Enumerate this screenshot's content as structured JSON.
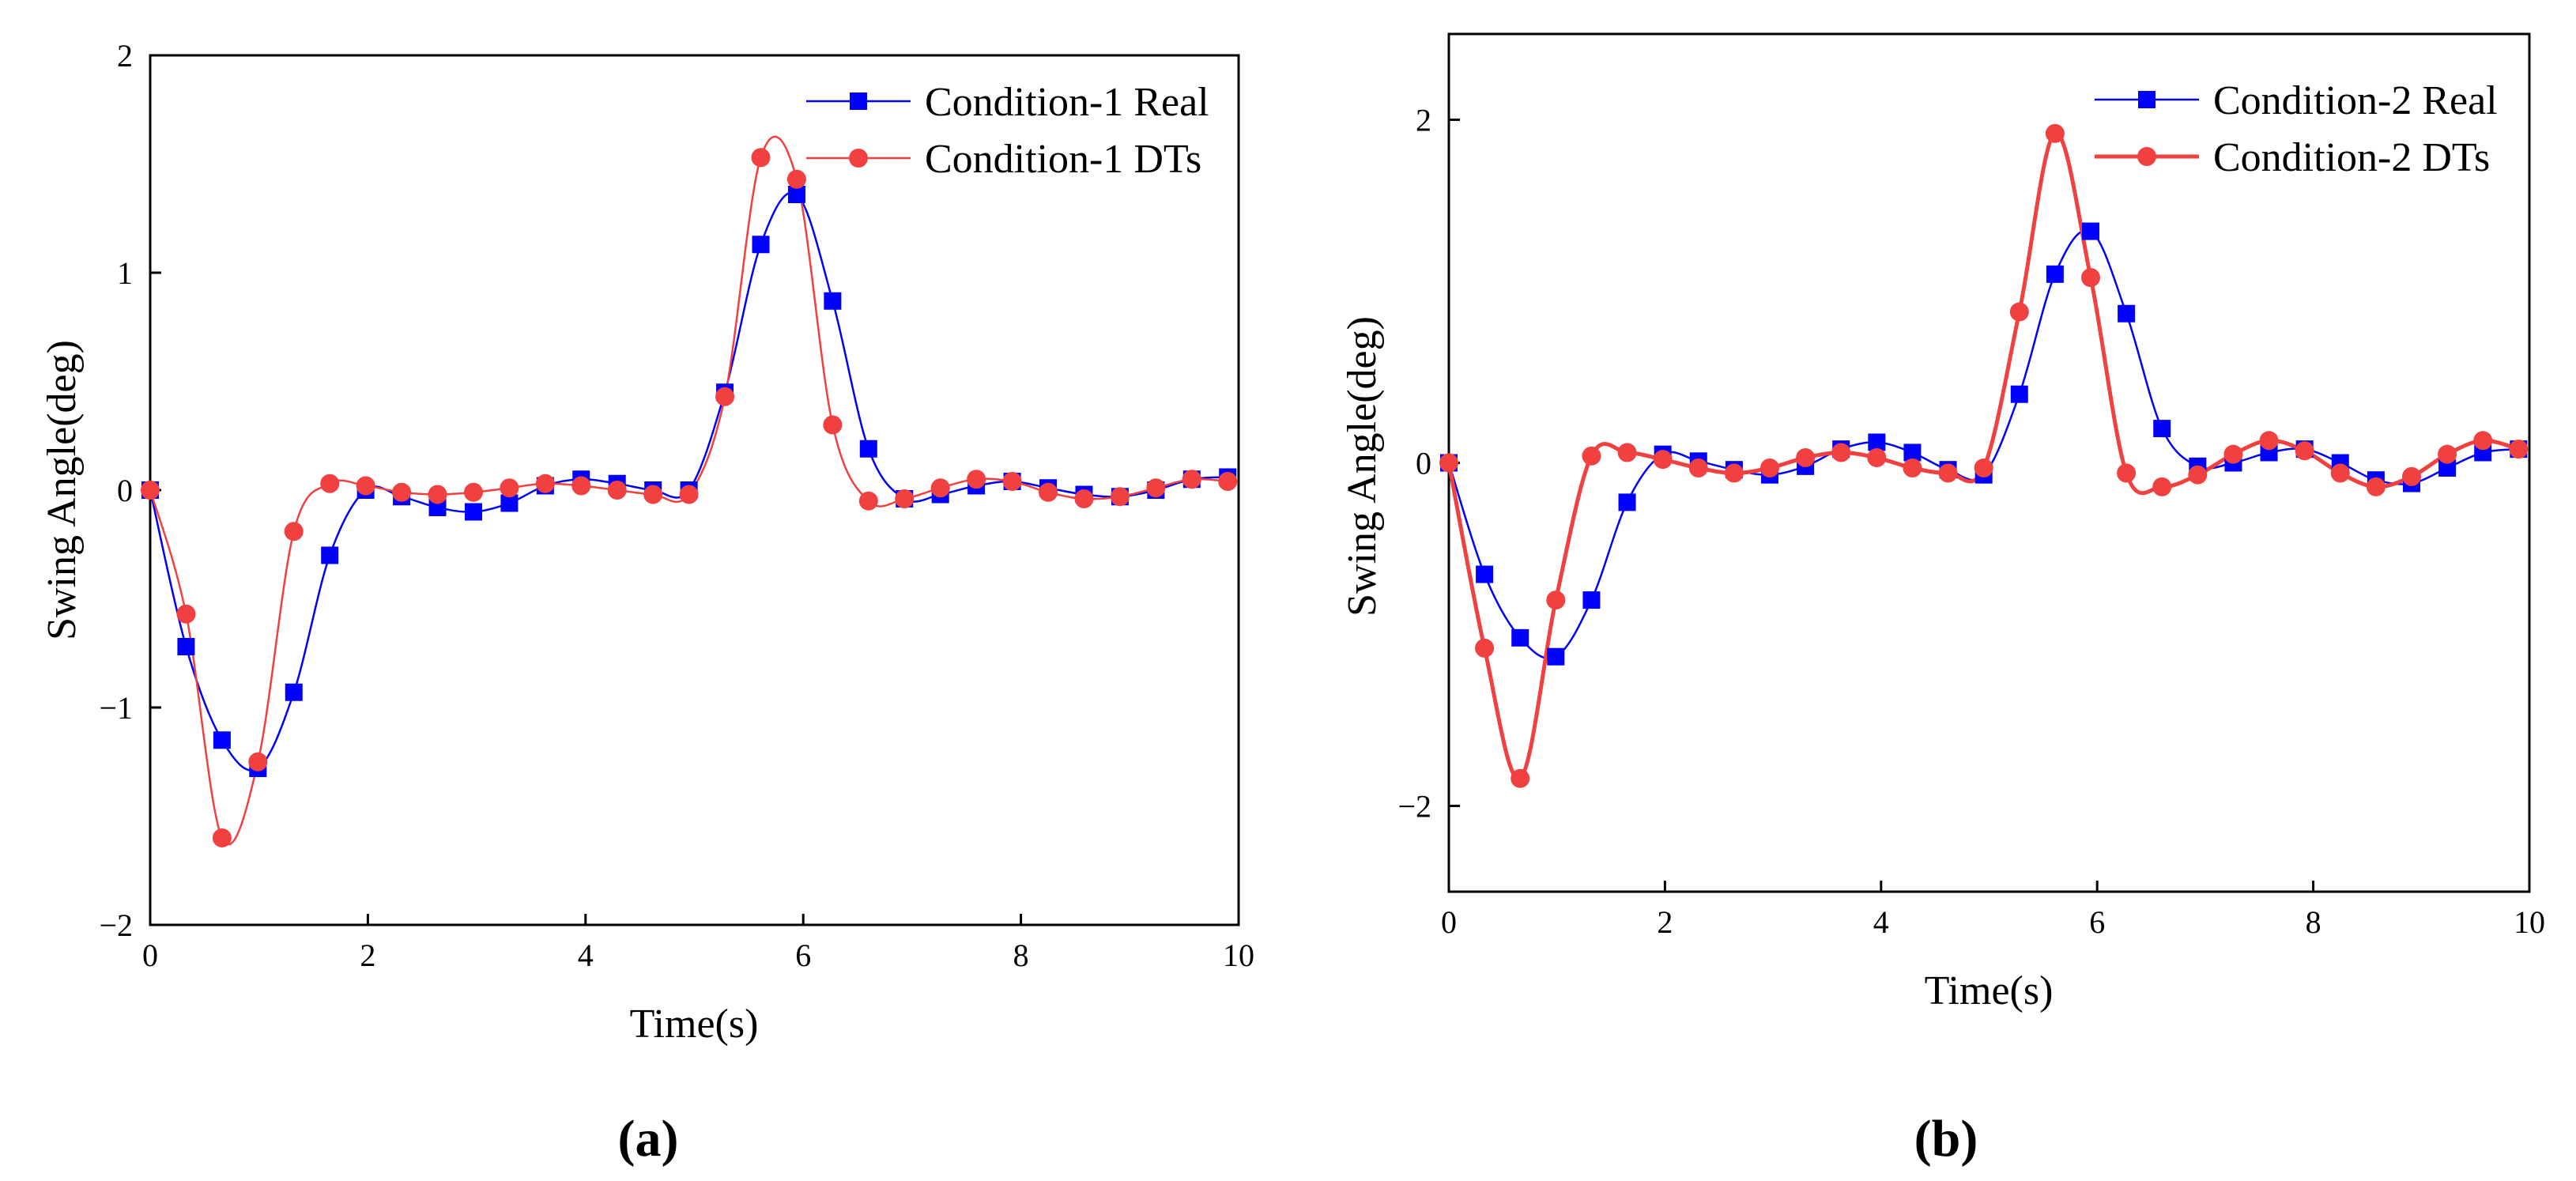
{
  "chart_data": [
    {
      "type": "line",
      "panel_label": "(a)",
      "panel_letter": "a",
      "xlabel": "Time(s)",
      "ylabel": "Swing Angle(deg)",
      "xlim": [
        0,
        10
      ],
      "ylim": [
        -2,
        2
      ],
      "xticks": [
        0,
        2,
        4,
        6,
        8,
        10
      ],
      "yticks": [
        -2,
        -1,
        0,
        1,
        2
      ],
      "xtick_labels": [
        "0",
        "2",
        "4",
        "6",
        "8",
        "10"
      ],
      "ytick_labels": [
        "−2",
        "−1",
        "0",
        "1",
        "2"
      ],
      "legend_position": "top-right",
      "series": [
        {
          "name": "Condition-1 Real",
          "color": "#0000ff",
          "marker": "square",
          "x": [
            0,
            0.33,
            0.66,
            0.99,
            1.32,
            1.65,
            1.98,
            2.31,
            2.64,
            2.97,
            3.3,
            3.63,
            3.96,
            4.29,
            4.62,
            4.95,
            5.28,
            5.61,
            5.94,
            6.27,
            6.6,
            6.93,
            7.26,
            7.59,
            7.92,
            8.25,
            8.58,
            8.91,
            9.24,
            9.57,
            9.9
          ],
          "y": [
            0,
            -0.72,
            -1.15,
            -1.28,
            -0.93,
            -0.3,
            0.0,
            -0.03,
            -0.08,
            -0.1,
            -0.06,
            0.02,
            0.05,
            0.03,
            0.0,
            0.0,
            0.45,
            1.13,
            1.36,
            0.87,
            0.19,
            -0.04,
            -0.02,
            0.02,
            0.04,
            0.01,
            -0.02,
            -0.03,
            0.0,
            0.05,
            0.06
          ]
        },
        {
          "name": "Condition-1 DTs",
          "color": "#f04040",
          "marker": "circle",
          "x": [
            0,
            0.33,
            0.66,
            0.99,
            1.32,
            1.65,
            1.98,
            2.31,
            2.64,
            2.97,
            3.3,
            3.63,
            3.96,
            4.29,
            4.62,
            4.95,
            5.28,
            5.61,
            5.94,
            6.27,
            6.6,
            6.93,
            7.26,
            7.59,
            7.92,
            8.25,
            8.58,
            8.91,
            9.24,
            9.57,
            9.9
          ],
          "y": [
            0,
            -0.57,
            -1.6,
            -1.25,
            -0.19,
            0.03,
            0.02,
            -0.01,
            -0.02,
            -0.01,
            0.01,
            0.03,
            0.02,
            0.0,
            -0.02,
            -0.02,
            0.43,
            1.53,
            1.43,
            0.3,
            -0.05,
            -0.04,
            0.01,
            0.05,
            0.04,
            -0.01,
            -0.04,
            -0.03,
            0.01,
            0.05,
            0.04
          ]
        }
      ]
    },
    {
      "type": "line",
      "panel_label": "(b)",
      "panel_letter": "b",
      "xlabel": "Time(s)",
      "ylabel": "Swing Angle(deg)",
      "xlim": [
        0,
        10
      ],
      "ylim": [
        -2.5,
        2.5
      ],
      "xticks": [
        0,
        2,
        4,
        6,
        8,
        10
      ],
      "yticks": [
        -2,
        0,
        2
      ],
      "xtick_labels": [
        "0",
        "2",
        "4",
        "6",
        "8",
        "10"
      ],
      "ytick_labels": [
        "−2",
        "0",
        "2"
      ],
      "legend_position": "top-right",
      "series": [
        {
          "name": "Condition-2 Real",
          "color": "#0000ff",
          "marker": "square",
          "x": [
            0,
            0.33,
            0.66,
            0.99,
            1.32,
            1.65,
            1.98,
            2.31,
            2.64,
            2.97,
            3.3,
            3.63,
            3.96,
            4.29,
            4.62,
            4.95,
            5.28,
            5.61,
            5.94,
            6.27,
            6.6,
            6.93,
            7.26,
            7.59,
            7.92,
            8.25,
            8.58,
            8.91,
            9.24,
            9.57,
            9.9
          ],
          "y": [
            0,
            -0.65,
            -1.02,
            -1.13,
            -0.8,
            -0.23,
            0.05,
            0.01,
            -0.04,
            -0.07,
            -0.02,
            0.08,
            0.12,
            0.06,
            -0.04,
            -0.07,
            0.4,
            1.1,
            1.35,
            0.87,
            0.2,
            -0.02,
            0.0,
            0.06,
            0.08,
            0.0,
            -0.1,
            -0.12,
            -0.03,
            0.06,
            0.08
          ]
        },
        {
          "name": "Condition-2 DTs",
          "color": "#f04040",
          "marker": "circle",
          "x": [
            0,
            0.33,
            0.66,
            0.99,
            1.32,
            1.65,
            1.98,
            2.31,
            2.64,
            2.97,
            3.3,
            3.63,
            3.96,
            4.29,
            4.62,
            4.95,
            5.28,
            5.61,
            5.94,
            6.27,
            6.6,
            6.93,
            7.26,
            7.59,
            7.92,
            8.25,
            8.58,
            8.91,
            9.24,
            9.57,
            9.9
          ],
          "y": [
            0,
            -1.08,
            -1.84,
            -0.8,
            0.04,
            0.06,
            0.02,
            -0.03,
            -0.06,
            -0.03,
            0.03,
            0.06,
            0.03,
            -0.03,
            -0.06,
            -0.03,
            0.88,
            1.92,
            1.08,
            -0.06,
            -0.14,
            -0.07,
            0.05,
            0.13,
            0.07,
            -0.06,
            -0.14,
            -0.08,
            0.05,
            0.13,
            0.08
          ]
        }
      ]
    }
  ]
}
